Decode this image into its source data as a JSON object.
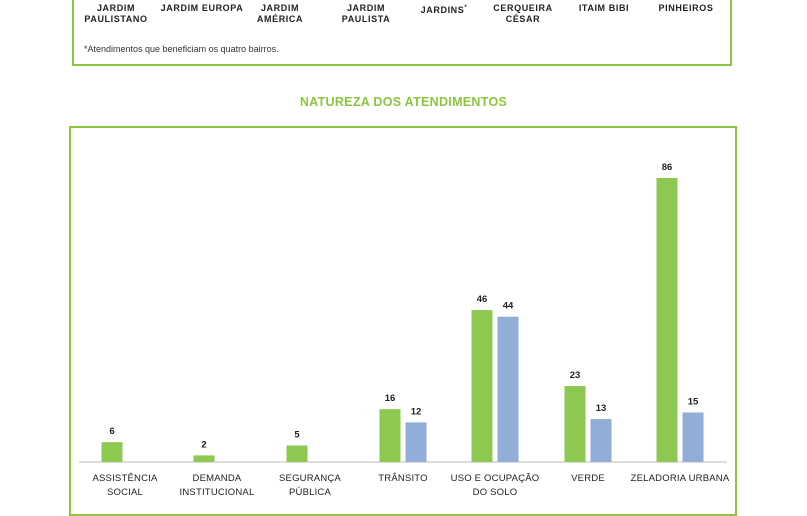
{
  "neighborhoods": [
    {
      "label": "JARDIM\nPAULISTANO"
    },
    {
      "label": "JARDIM EUROPA"
    },
    {
      "label": "JARDIM\nAMÉRICA"
    },
    {
      "label": "JARDIM\nPAULISTA"
    },
    {
      "label": "JARDINS",
      "marker": "*"
    },
    {
      "label": "CERQUEIRA\nCÉSAR"
    },
    {
      "label": "ITAIM BIBI"
    },
    {
      "label": "PINHEIROS"
    }
  ],
  "footnote": "*Atendimentos que beneficiam os quatro bairros.",
  "chart_data": {
    "type": "bar",
    "title": "NATUREZA DOS ATENDIMENTOS",
    "categories": [
      "ASSISTÊNCIA SOCIAL",
      "DEMANDA\nINSTITUCIONAL",
      "SEGURANÇA\nPÚBLICA",
      "TRÂNSITO",
      "USO E OCUPAÇÃO\nDO SOLO",
      "VERDE",
      "ZELADORIA URBANA"
    ],
    "series": [
      {
        "values": [
          6,
          2,
          5,
          16,
          46,
          23,
          86
        ],
        "color": "#8dc950"
      },
      {
        "values": [
          null,
          null,
          null,
          12,
          44,
          13,
          15
        ],
        "color": "#92add8"
      }
    ],
    "ylim": [
      0,
      86
    ],
    "grid": false
  }
}
